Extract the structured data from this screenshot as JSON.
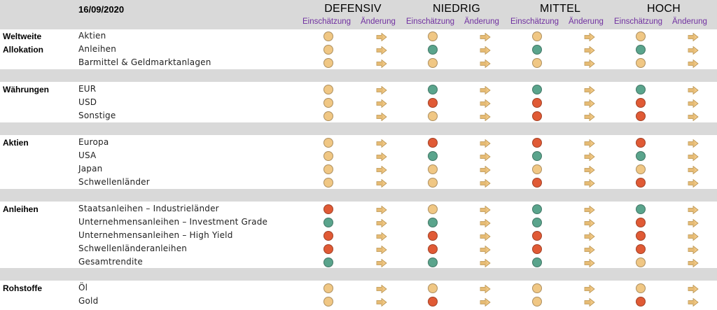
{
  "date": "16/09/2020",
  "profiles": [
    "DEFENSIV",
    "NIEDRIG",
    "MITTEL",
    "HOCH"
  ],
  "subheaders": {
    "assessment": "Einschätzung",
    "change": "Änderung"
  },
  "legend_colors": {
    "neutral": "#f0c784",
    "positive": "#5aa48c",
    "negative": "#e05a35",
    "arrow": "#f0c784"
  },
  "groups": [
    {
      "title": "Weltweite Allokation",
      "rows": [
        {
          "label": "Aktien",
          "ratings": [
            "neutral",
            "neutral",
            "neutral",
            "neutral"
          ]
        },
        {
          "label": "Anleihen",
          "ratings": [
            "neutral",
            "positive",
            "positive",
            "positive"
          ]
        },
        {
          "label": "Barmittel & Geldmarktanlagen",
          "ratings": [
            "neutral",
            "neutral",
            "neutral",
            "neutral"
          ]
        }
      ]
    },
    {
      "title": "Währungen",
      "rows": [
        {
          "label": "EUR",
          "ratings": [
            "neutral",
            "positive",
            "positive",
            "positive"
          ]
        },
        {
          "label": "USD",
          "ratings": [
            "neutral",
            "negative",
            "negative",
            "negative"
          ]
        },
        {
          "label": "Sonstige",
          "ratings": [
            "neutral",
            "neutral",
            "negative",
            "negative"
          ]
        }
      ]
    },
    {
      "title": "Aktien",
      "rows": [
        {
          "label": "Europa",
          "ratings": [
            "neutral",
            "negative",
            "negative",
            "negative"
          ]
        },
        {
          "label": "USA",
          "ratings": [
            "neutral",
            "positive",
            "positive",
            "positive"
          ]
        },
        {
          "label": "Japan",
          "ratings": [
            "neutral",
            "neutral",
            "neutral",
            "neutral"
          ]
        },
        {
          "label": "Schwellenländer",
          "ratings": [
            "neutral",
            "neutral",
            "negative",
            "negative"
          ]
        }
      ]
    },
    {
      "title": "Anleihen",
      "rows": [
        {
          "label": "Staatsanleihen – Industrieländer",
          "ratings": [
            "negative",
            "neutral",
            "positive",
            "positive"
          ]
        },
        {
          "label": "Unternehmensanleihen – Investment Grade",
          "ratings": [
            "positive",
            "positive",
            "positive",
            "negative"
          ]
        },
        {
          "label": "Unternehmensanleihen – High Yield",
          "ratings": [
            "negative",
            "negative",
            "negative",
            "negative"
          ]
        },
        {
          "label": "Schwellenländeranleihen",
          "ratings": [
            "negative",
            "negative",
            "negative",
            "negative"
          ]
        },
        {
          "label": "Gesamtrendite",
          "ratings": [
            "positive",
            "positive",
            "positive",
            "neutral"
          ]
        }
      ]
    },
    {
      "title": "Rohstoffe",
      "rows": [
        {
          "label": "Öl",
          "ratings": [
            "neutral",
            "neutral",
            "neutral",
            "neutral"
          ]
        },
        {
          "label": "Gold",
          "ratings": [
            "neutral",
            "negative",
            "neutral",
            "negative"
          ]
        }
      ]
    }
  ]
}
